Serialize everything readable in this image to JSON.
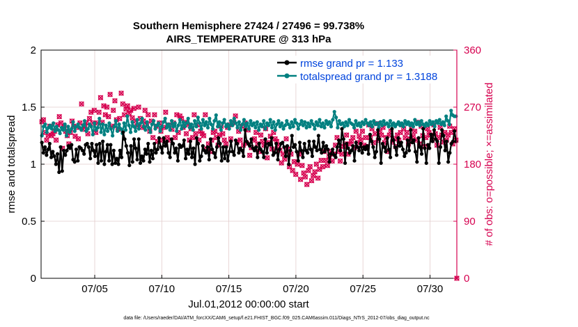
{
  "chart_data": {
    "type": "line",
    "title_line1": "Southern Hemisphere 27424 / 27496 = 99.738%",
    "title_line2": "AIRS_TEMPERATURE @ 313 hPa",
    "ylabel_left": "rmse and totalspread",
    "ylabel_right": "# of obs: o=possible; ×=assimilated",
    "xlabel": "Jul.01,2012 00:00:00 start",
    "footer": "data file: /Users/raeder/DAI/ATM_forcXX/CAM6_setup/f.e21.FHIST_BGC.f09_025.CAM6assim.011/Diags_NTrS_2012-07/obs_diag_output.nc",
    "x_ticks": [
      "07/05",
      "07/10",
      "07/15",
      "07/20",
      "07/25",
      "07/30"
    ],
    "x_tick_days": [
      5,
      10,
      15,
      20,
      25,
      30
    ],
    "xlim": [
      1,
      32
    ],
    "ylim_left": [
      0,
      2
    ],
    "left_ticks": [
      "0",
      "0.5",
      "1",
      "1.5",
      "2"
    ],
    "ylim_right": [
      0,
      360
    ],
    "right_ticks": [
      "0",
      "90",
      "180",
      "270",
      "360"
    ],
    "colors": {
      "rmse": "#000000",
      "spread": "#008080",
      "obs": "#d6004f",
      "legend_text": "#0044dd",
      "grid": "#e3cccc"
    },
    "series": [
      {
        "name": "rmse grand pr = 1.133",
        "values": [
          1.19,
          1.1,
          1.15,
          1.08,
          1.13,
          1.18,
          1.06,
          1.11,
          1.07,
          1.0,
          1.09,
          0.93,
          1.15,
          0.94,
          1.12,
          1.08,
          1.12,
          1.16,
          1.14,
          1.17,
          1.04,
          1.02,
          1.13,
          1.03,
          1.15,
          1.14,
          1.12,
          1.09,
          1.17,
          1.18,
          1.15,
          1.05,
          1.18,
          1.12,
          1.07,
          1.17,
          1.01,
          1.18,
          1.03,
          1.2,
          1.0,
          1.11,
          1.17,
          1.03,
          1.17,
          1.0,
          1.12,
          1.01,
          1.05,
          1.0,
          1.12,
          1.06,
          1.28,
          1.22,
          1.16,
          1.1,
          0.99,
          1.16,
          1.02,
          1.22,
          1.14,
          1.04,
          1.22,
          1.01,
          1.07,
          1.03,
          1.13,
          1.09,
          1.18,
          1.02,
          1.12,
          1.05,
          1.18,
          1.1,
          1.13,
          1.23,
          1.15,
          1.1,
          1.23,
          1.16,
          1.2,
          1.1,
          1.06,
          1.22,
          1.18,
          1.1,
          1.14,
          1.03,
          1.17,
          1.15,
          1.16,
          1.21,
          1.05,
          1.13,
          1.09,
          1.2,
          1.06,
          1.14,
          1.0,
          1.23,
          1.18,
          1.03,
          1.07,
          1.16,
          1.12,
          1.1,
          1.15,
          1.04,
          1.22,
          1.13,
          1.1,
          1.06,
          1.15,
          1.23,
          1.18,
          1.03,
          1.15,
          1.05,
          1.15,
          1.03,
          1.11,
          1.2,
          1.11,
          1.08,
          1.21,
          1.18,
          1.1,
          1.14,
          1.12,
          1.07,
          1.3,
          1.2,
          1.18,
          1.16,
          1.22,
          1.14,
          1.12,
          1.15,
          1.06,
          1.18,
          1.13,
          1.11,
          1.06,
          1.22,
          1.1,
          1.18,
          1.17,
          1.23,
          1.08,
          1.1,
          1.18,
          1.04,
          1.13,
          1.18,
          1.19,
          1.15,
          1.07,
          1.16,
          1.0,
          1.12,
          1.25,
          1.15,
          1.17,
          1.11,
          1.03,
          1.19,
          1.12,
          1.06,
          1.18,
          1.12,
          1.1,
          1.2,
          1.13,
          1.07,
          1.2,
          1.15,
          1.12,
          1.25,
          1.13,
          1.1,
          1.19,
          1.11,
          1.16,
          1.13,
          1.02,
          1.09,
          1.13,
          1.08,
          1.06,
          1.15,
          1.21,
          1.12,
          1.31,
          1.22,
          1.01,
          1.18,
          1.14,
          1.1,
          1.12,
          1.16,
          1.03,
          1.19,
          1.15,
          1.12,
          1.18,
          1.1,
          1.15,
          1.13,
          1.16,
          1.09,
          1.26,
          1.2,
          1.15,
          1.06,
          1.11,
          1.3,
          1.22,
          1.01,
          1.18,
          1.15,
          1.11,
          1.23,
          1.13,
          1.06,
          1.31,
          1.21,
          1.15,
          1.08,
          1.23,
          1.16,
          1.19,
          1.13,
          1.07,
          1.1,
          1.21,
          1.12,
          1.3,
          1.19,
          1.21,
          1.11,
          1.02,
          1.23,
          1.15,
          1.09,
          1.31,
          1.14,
          1.01,
          1.17,
          1.14,
          1.26,
          1.2,
          1.3,
          1.22,
          1.2,
          1.01,
          1.15,
          1.3,
          1.25,
          1.12,
          1.2,
          1.02,
          1.1,
          1.18,
          1.2,
          1.29,
          1.2
        ]
      },
      {
        "name": "totalspread grand pr = 1.3188",
        "values": [
          1.25,
          1.33,
          1.35,
          1.28,
          1.32,
          1.34,
          1.31,
          1.36,
          1.29,
          1.33,
          1.3,
          1.27,
          1.32,
          1.3,
          1.35,
          1.25,
          1.33,
          1.28,
          1.31,
          1.37,
          1.29,
          1.33,
          1.35,
          1.32,
          1.3,
          1.34,
          1.38,
          1.29,
          1.31,
          1.35,
          1.33,
          1.26,
          1.36,
          1.3,
          1.32,
          1.4,
          1.28,
          1.35,
          1.26,
          1.34,
          1.29,
          1.36,
          1.31,
          1.25,
          1.33,
          1.38,
          1.29,
          1.35,
          1.31,
          1.27,
          1.36,
          1.3,
          1.42,
          1.34,
          1.28,
          1.37,
          1.33,
          1.29,
          1.39,
          1.31,
          1.36,
          1.4,
          1.33,
          1.3,
          1.37,
          1.32,
          1.28,
          1.35,
          1.38,
          1.31,
          1.34,
          1.36,
          1.29,
          1.33,
          1.37,
          1.4,
          1.32,
          1.35,
          1.3,
          1.38,
          1.33,
          1.36,
          1.29,
          1.34,
          1.39,
          1.31,
          1.37,
          1.33,
          1.36,
          1.4,
          1.32,
          1.35,
          1.3,
          1.38,
          1.33,
          1.41,
          1.36,
          1.31,
          1.39,
          1.34,
          1.37,
          1.32,
          1.4,
          1.35,
          1.31,
          1.38,
          1.43,
          1.33,
          1.37,
          1.3,
          1.36,
          1.39,
          1.33,
          1.35,
          1.31,
          1.38,
          1.34,
          1.4,
          1.36,
          1.32,
          1.37,
          1.3,
          1.35,
          1.39,
          1.33,
          1.36,
          1.31,
          1.38,
          1.34,
          1.36,
          1.32,
          1.37,
          1.3,
          1.35,
          1.33,
          1.38,
          1.31,
          1.36,
          1.34,
          1.39,
          1.32,
          1.37,
          1.3,
          1.35,
          1.38,
          1.33,
          1.36,
          1.31,
          1.34,
          1.38,
          1.35,
          1.32,
          1.37,
          1.33,
          1.39,
          1.36,
          1.31,
          1.35,
          1.38,
          1.34,
          1.37,
          1.32,
          1.36,
          1.33,
          1.38,
          1.35,
          1.31,
          1.37,
          1.34,
          1.39,
          1.33,
          1.36,
          1.32,
          1.38,
          1.35,
          1.37,
          1.33,
          1.39,
          1.46,
          1.41,
          1.32,
          1.38,
          1.35,
          1.36,
          1.33,
          1.37,
          1.34,
          1.39,
          1.36,
          1.35,
          1.32,
          1.38,
          1.34,
          1.36,
          1.33,
          1.37,
          1.35,
          1.39,
          1.36,
          1.34,
          1.37,
          1.33,
          1.38,
          1.35,
          1.36,
          1.32,
          1.37,
          1.34,
          1.38,
          1.35,
          1.36,
          1.33,
          1.38,
          1.34,
          1.36,
          1.33,
          1.35,
          1.37,
          1.34,
          1.36,
          1.33,
          1.38,
          1.35,
          1.37,
          1.34,
          1.36,
          1.33,
          1.39,
          1.35,
          1.37,
          1.34,
          1.38,
          1.35,
          1.33,
          1.36,
          1.34,
          1.38,
          1.35,
          1.37,
          1.33,
          1.38,
          1.36,
          1.39,
          1.35,
          1.37,
          1.34,
          1.42,
          1.38,
          1.35,
          1.47,
          1.43,
          1.42,
          1.42
        ]
      },
      {
        "name": "obs possible / assimilated",
        "values": [
          247,
          250,
          230,
          218,
          226,
          240,
          225,
          228,
          232,
          218,
          242,
          255,
          245,
          205,
          238,
          232,
          225,
          212,
          230,
          248,
          240,
          224,
          238,
          220,
          245,
          275,
          235,
          240,
          245,
          228,
          252,
          262,
          245,
          265,
          230,
          245,
          262,
          285,
          246,
          272,
          258,
          270,
          255,
          290,
          240,
          265,
          280,
          250,
          235,
          252,
          292,
          275,
          258,
          267,
          272,
          260,
          265,
          253,
          268,
          248,
          240,
          270,
          252,
          238,
          248,
          265,
          242,
          258,
          232,
          248,
          222,
          258,
          240,
          216,
          245,
          232,
          218,
          238,
          262,
          222,
          242,
          218,
          235,
          245,
          222,
          258,
          230,
          256,
          252,
          238,
          246,
          228,
          242,
          218,
          236,
          222,
          258,
          228,
          242,
          218,
          232,
          228,
          225,
          258,
          204,
          212,
          200,
          218,
          230,
          232,
          222,
          210,
          226,
          240,
          228,
          218,
          212,
          238,
          242,
          220,
          245,
          246,
          256,
          215,
          232,
          218,
          240,
          210,
          245,
          213,
          234,
          194,
          206,
          218,
          220,
          230,
          212,
          200,
          226,
          216,
          210,
          236,
          190,
          214,
          224,
          204,
          230,
          220,
          216,
          210,
          202,
          182,
          196,
          188,
          220,
          204,
          176,
          196,
          170,
          184,
          164,
          180,
          196,
          156,
          178,
          166,
          160,
          148,
          170,
          176,
          154,
          162,
          168,
          180,
          158,
          172,
          186,
          176,
          200,
          186,
          178,
          192,
          200,
          185,
          196,
          210,
          222,
          200,
          185,
          196,
          208,
          212,
          226,
          196,
          212,
          216,
          222,
          206,
          232,
          214,
          224,
          218,
          232,
          210,
          222,
          208,
          242,
          222,
          236,
          214,
          228,
          244,
          218,
          232,
          226,
          238,
          214,
          222,
          200,
          226,
          232,
          215,
          220,
          208,
          226,
          218,
          230,
          242,
          236,
          222,
          230,
          212,
          220,
          240,
          224,
          232,
          218,
          246,
          212,
          240,
          225,
          208,
          222,
          236,
          230,
          226,
          218,
          242,
          228,
          210,
          222,
          238,
          226,
          215,
          230,
          218,
          226,
          240,
          230,
          212,
          236,
          218
        ]
      }
    ]
  }
}
